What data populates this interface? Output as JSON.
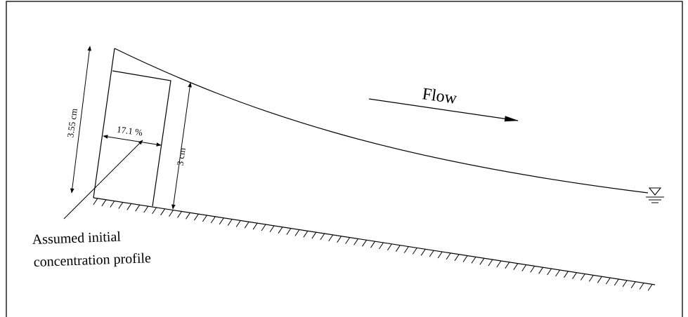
{
  "labels": {
    "flow": "Flow",
    "depth_total": "3.55 cm",
    "depth_layer": "3 cm",
    "concentration": "17.1 %",
    "annotation_line1": "Assumed initial",
    "annotation_line2": "concentration profile"
  },
  "icons": {
    "water_surface_symbol": "water-level-triangle",
    "channel_bed_hatching": "hatched-bed"
  },
  "colors": {
    "line": "#000000",
    "background": "#ffffff"
  }
}
